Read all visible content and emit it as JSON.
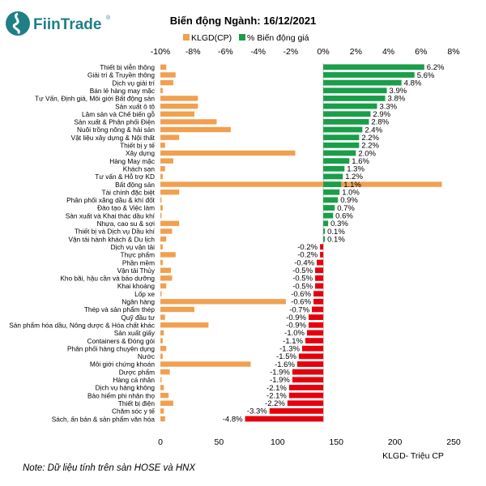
{
  "brand": {
    "name": "FiinTrade",
    "registered_mark": "®"
  },
  "footnote": "Note: Dữ liệu tính trên sàn HOSE và HNX",
  "colors": {
    "volume": "#f0a050",
    "positive": "#1a9e49",
    "negative": "#e5000d",
    "brand": "#1e7f86"
  },
  "chart_data": {
    "type": "bar",
    "title": "Biến động Ngành: 16/12/2021",
    "legend": [
      {
        "name": "KLGD(CP)",
        "color": "#f0a050"
      },
      {
        "name": "% Biến động giá",
        "color": "#1a9e49"
      }
    ],
    "legend_position": "top",
    "top_axis": {
      "ticks": [
        "-10%",
        "-8%",
        "-6%",
        "-4%",
        "-2%",
        "0%",
        "2%",
        "4%",
        "6%",
        "8%"
      ],
      "range": [
        -10,
        8
      ]
    },
    "bottom_axis": {
      "label": "KLGD- Triệu CP",
      "ticks": [
        "0",
        "50",
        "100",
        "150",
        "200",
        "250"
      ],
      "range": [
        0,
        250
      ]
    },
    "grid": false,
    "categories": [
      "Thiết bị viễn thông",
      "Giải trí & Truyền thông",
      "Dịch vụ giải trí",
      "Bán lẻ hàng may mặc",
      "Tư Vấn, Định giá, Môi giới Bất động sản",
      "Sản xuất ô tô",
      "Lâm sản và Chế biến gỗ",
      "Sản xuất & Phân phối Điện",
      "Nuôi trồng nông & hải sản",
      "Vật liệu xây dựng & Nội thất",
      "Thiết bị y tế",
      "Xây dựng",
      "Hàng May mặc",
      "Khách sạn",
      "Tư vấn & Hỗ trợ KD",
      "Bất động sản",
      "Tài chính đặc biệt",
      "Phân phối xăng dầu & khí đốt",
      "Đào tạo & Việc làm",
      "Sản xuất và Khai thác dầu khí",
      "Nhựa, cao su & sợi",
      "Thiết bị và Dịch vụ Dầu khí",
      "Vận tải hành khách & Du lịch",
      "Dịch vụ vận tải",
      "Thực phẩm",
      "Phần mềm",
      "Vận tải Thủy",
      "Kho bãi, hậu cần và bảo dưỡng",
      "Khai khoáng",
      "Lốp xe",
      "Ngân hàng",
      "Thép và sản phẩm thép",
      "Quỹ đầu tư",
      "Sản phẩm hóa dầu, Nông dược & Hóa chất khác",
      "Sản xuất giấy",
      "Containers & Đóng gói",
      "Phân phối hàng chuyên dụng",
      "Nước",
      "Môi giới chứng khoán",
      "Dược phẩm",
      "Hàng cá nhân",
      "Dịch vụ hàng không",
      "Bảo hiểm phi nhân thọ",
      "Thiết bị điện",
      "Chăm sóc y tế",
      "Sách, ấn bản & sản phẩm văn hóa"
    ],
    "series": [
      {
        "name": "KLGD(CP)",
        "axis": "bottom",
        "values": [
          5,
          13,
          11,
          2,
          32,
          32,
          29,
          48,
          60,
          16,
          4,
          115,
          11,
          4,
          2,
          240,
          16,
          1,
          2,
          1,
          16,
          10,
          5,
          2,
          13,
          2,
          9,
          10,
          5,
          1,
          107,
          29,
          4,
          41,
          3,
          2,
          5,
          2,
          77,
          8,
          1,
          3,
          7,
          11,
          3,
          4
        ]
      },
      {
        "name": "% Biến động giá",
        "axis": "top",
        "values": [
          6.2,
          5.6,
          4.8,
          3.9,
          3.8,
          3.3,
          2.9,
          2.8,
          2.4,
          2.2,
          2.2,
          2.0,
          1.6,
          1.3,
          1.2,
          1.1,
          1.0,
          0.9,
          0.7,
          0.6,
          0.3,
          0.1,
          0.1,
          -0.2,
          -0.2,
          -0.4,
          -0.5,
          -0.5,
          -0.5,
          -0.6,
          -0.6,
          -0.7,
          -0.9,
          -0.9,
          -1.0,
          -1.1,
          -1.3,
          -1.5,
          -1.6,
          -1.9,
          -1.9,
          -2.1,
          -2.1,
          -2.2,
          -3.3,
          -4.8
        ],
        "labels": [
          "6.2%",
          "5.6%",
          "4.8%",
          "3.9%",
          "3.8%",
          "3.3%",
          "2.9%",
          "2.8%",
          "2.4%",
          "2.2%",
          "2.2%",
          "2.0%",
          "1.6%",
          "1.3%",
          "1.2%",
          "1.1%",
          "1.0%",
          "0.9%",
          "0.7%",
          "0.6%",
          "0.3%",
          "0.1%",
          "0.1%",
          "-0.2%",
          "-0.2%",
          "-0.4%",
          "-0.5%",
          "-0.5%",
          "-0.5%",
          "-0.6%",
          "-0.6%",
          "-0.7%",
          "-0.9%",
          "-0.9%",
          "-1.0%",
          "-1.1%",
          "-1.3%",
          "-1.5%",
          "-1.6%",
          "-1.9%",
          "-1.9%",
          "-2.1%",
          "-2.1%",
          "-2.2%",
          "-3.3%",
          "-4.8%"
        ]
      }
    ]
  }
}
